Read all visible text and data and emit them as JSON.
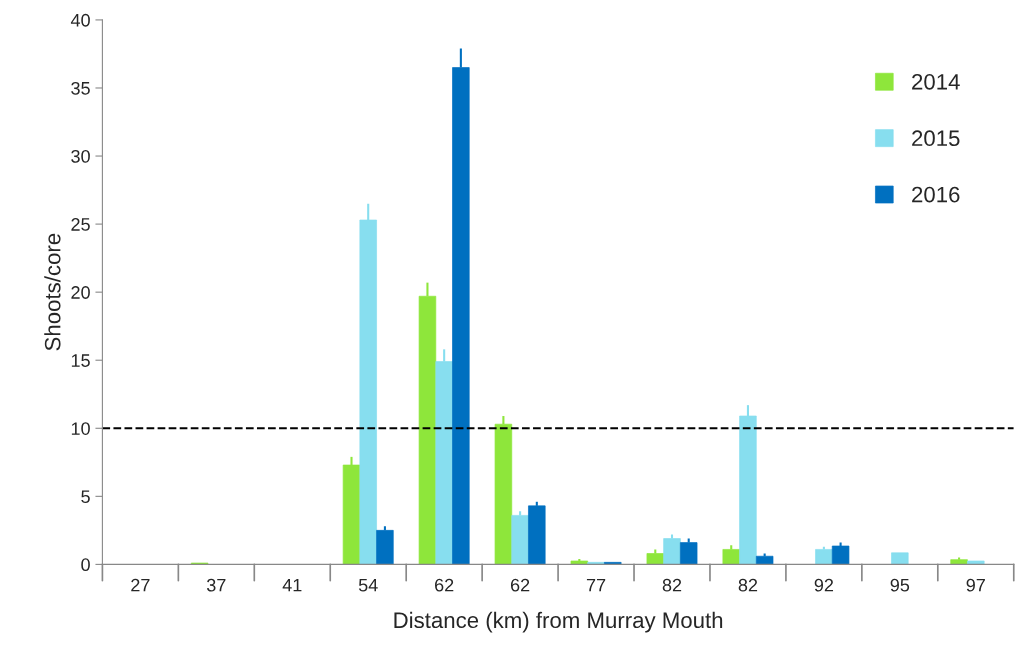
{
  "chart_data": {
    "type": "bar",
    "xlabel": "Distance (km) from Murray Mouth",
    "ylabel": "Shoots/core",
    "categories": [
      "27",
      "37",
      "41",
      "54",
      "62",
      "62",
      "77",
      "82",
      "82",
      "92",
      "95",
      "97"
    ],
    "series": [
      {
        "name": "2014",
        "color": "#8ee63b",
        "values": [
          null,
          0.1,
          null,
          7.3,
          19.7,
          10.3,
          0.25,
          0.8,
          1.1,
          null,
          null,
          0.35
        ],
        "errors": [
          null,
          null,
          null,
          [
            7.3,
            7.9
          ],
          [
            19.7,
            20.7
          ],
          [
            10.3,
            10.9
          ],
          [
            0.25,
            0.4
          ],
          [
            0.8,
            1.1
          ],
          [
            1.1,
            1.4
          ],
          null,
          null,
          [
            0.35,
            0.5
          ]
        ]
      },
      {
        "name": "2015",
        "color": "#87deef",
        "values": [
          null,
          null,
          null,
          25.3,
          14.9,
          3.6,
          0.15,
          1.9,
          10.9,
          1.1,
          0.85,
          0.25
        ],
        "errors": [
          null,
          null,
          null,
          [
            25.3,
            26.5
          ],
          [
            14.9,
            15.8
          ],
          [
            3.6,
            3.9
          ],
          null,
          [
            1.9,
            2.2
          ],
          [
            10.9,
            11.7
          ],
          [
            1.1,
            1.3
          ],
          null,
          null
        ]
      },
      {
        "name": "2016",
        "color": "#0070c0",
        "values": [
          null,
          null,
          null,
          2.5,
          36.5,
          4.3,
          0.15,
          1.6,
          0.6,
          1.35,
          null,
          null
        ],
        "errors": [
          null,
          null,
          null,
          [
            2.5,
            2.8
          ],
          [
            36.5,
            37.9
          ],
          [
            4.3,
            4.6
          ],
          null,
          [
            1.6,
            1.9
          ],
          [
            0.6,
            0.8
          ],
          [
            1.35,
            1.6
          ],
          null,
          null
        ]
      }
    ],
    "ylim": [
      0,
      40
    ],
    "yticks": [
      0,
      5,
      10,
      15,
      20,
      25,
      30,
      35,
      40
    ],
    "ref_lines": [
      {
        "axis": "y",
        "value": 10,
        "line_style": "dashed",
        "color": "#000000"
      }
    ],
    "grid": false,
    "legend": "top right"
  }
}
